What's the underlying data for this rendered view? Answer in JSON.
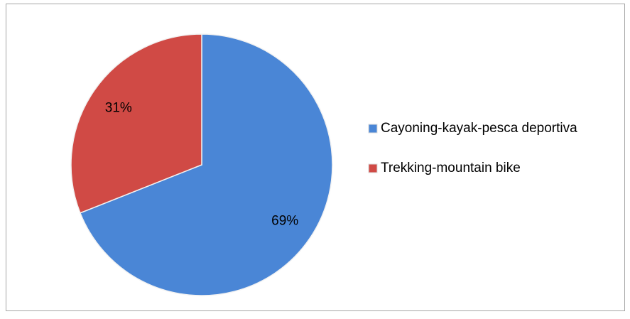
{
  "chart_data": {
    "type": "pie",
    "categories": [
      "Cayoning-kayak-pesca deportiva",
      "Trekking-mountain bike"
    ],
    "values": [
      69,
      31
    ],
    "value_labels": [
      "69%",
      "31%"
    ],
    "colors": [
      "#4a86d6",
      "#d04a45"
    ],
    "legend": "right"
  }
}
